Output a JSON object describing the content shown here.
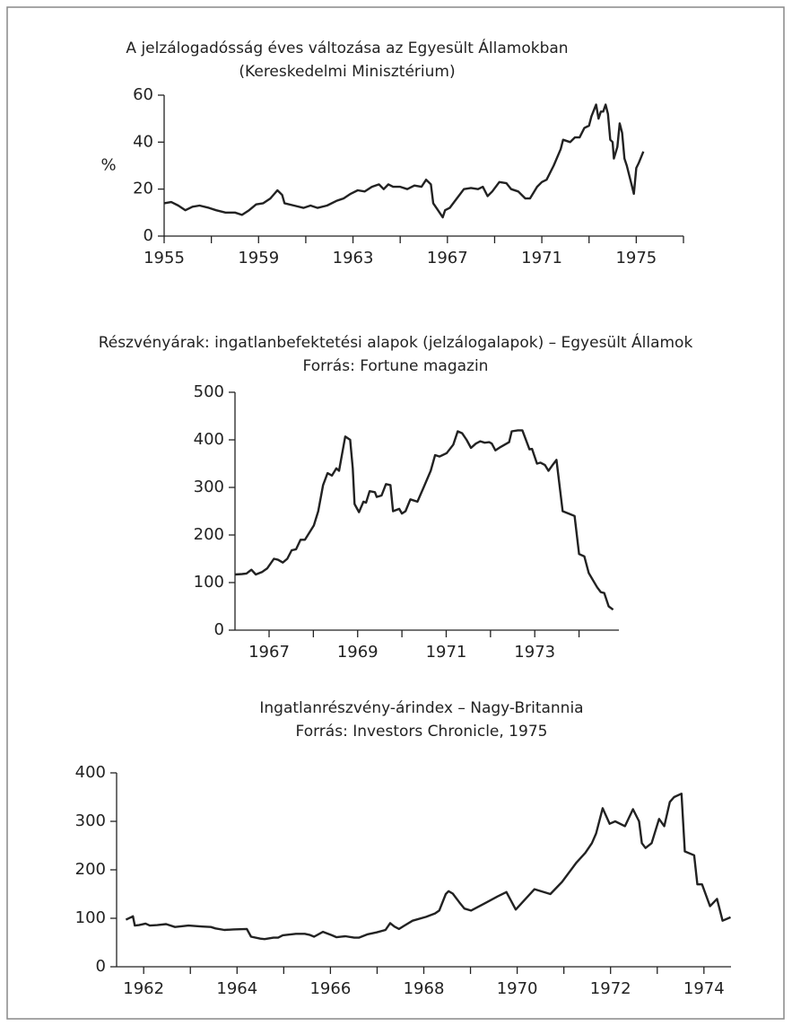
{
  "chart_data": [
    {
      "type": "line",
      "title": "A jelzálogadósság éves változása az Egyesült Államokban",
      "subtitle": "(Kereskedelmi Minisztérium)",
      "ylabel": "%",
      "color": "#222222",
      "x": [
        1955.0,
        1955.3,
        1955.6,
        1955.9,
        1956.2,
        1956.5,
        1956.9,
        1957.2,
        1957.6,
        1958.0,
        1958.3,
        1958.6,
        1958.9,
        1959.2,
        1959.5,
        1959.8,
        1960.0,
        1960.1,
        1960.5,
        1960.9,
        1961.2,
        1961.5,
        1961.9,
        1962.3,
        1962.6,
        1962.9,
        1963.2,
        1963.5,
        1963.8,
        1964.1,
        1964.3,
        1964.5,
        1964.7,
        1965.0,
        1965.3,
        1965.6,
        1965.9,
        1966.1,
        1966.3,
        1966.4,
        1966.6,
        1966.8,
        1966.9,
        1967.1,
        1967.4,
        1967.7,
        1968.0,
        1968.3,
        1968.5,
        1968.7,
        1968.9,
        1969.2,
        1969.5,
        1969.7,
        1970.0,
        1970.3,
        1970.5,
        1970.8,
        1971.0,
        1971.2,
        1971.5,
        1971.8,
        1971.9,
        1972.2,
        1972.4,
        1972.6,
        1972.8,
        1973.0,
        1973.1,
        1973.3,
        1973.4,
        1973.5,
        1973.6,
        1973.7,
        1973.8,
        1973.9,
        1974.0,
        1974.05,
        1974.2,
        1974.3,
        1974.4,
        1974.5,
        1974.6,
        1974.8,
        1974.9,
        1975.0,
        1975.1,
        1975.3
      ],
      "values": [
        14,
        14.5,
        13,
        11,
        12.5,
        13,
        12,
        11,
        10,
        10,
        9,
        11,
        13.5,
        14,
        16,
        19.5,
        17.5,
        14,
        13,
        12,
        13,
        12,
        13,
        15,
        16,
        18,
        19.5,
        19,
        21,
        22,
        20,
        22,
        21,
        21,
        20,
        21.5,
        21,
        24,
        22,
        14,
        11,
        8,
        11,
        12,
        16,
        20,
        20.5,
        20,
        21,
        17,
        19,
        23,
        22.5,
        20,
        19,
        16,
        16,
        21,
        23,
        24,
        30,
        37,
        41,
        40,
        42,
        42,
        46,
        47,
        51,
        56,
        50,
        53,
        53,
        56,
        52,
        41,
        40,
        33,
        38,
        48,
        44,
        33,
        30,
        22,
        18,
        29,
        31,
        36
      ],
      "xlim": [
        1955,
        1977
      ],
      "xticks": [
        1955,
        1959,
        1963,
        1967,
        1971,
        1975
      ],
      "xticks_minor": [
        1957,
        1961,
        1965,
        1969,
        1973,
        1977
      ],
      "ylim": [
        0,
        60
      ],
      "yticks": [
        0,
        20,
        40,
        60
      ]
    },
    {
      "type": "line",
      "title": "Részvényárak: ingatlanbefektetési alapok (jelzálogalapok) – Egyesült Államok",
      "subtitle": "Forrás: Fortune magazin",
      "color": "#222222",
      "x": [
        1966.23,
        1966.39,
        1966.49,
        1966.6,
        1966.7,
        1966.84,
        1966.96,
        1967.11,
        1967.2,
        1967.31,
        1967.41,
        1967.51,
        1967.61,
        1967.71,
        1967.81,
        1968.01,
        1968.11,
        1968.22,
        1968.32,
        1968.42,
        1968.52,
        1968.58,
        1968.72,
        1968.83,
        1968.89,
        1968.93,
        1969.03,
        1969.13,
        1969.19,
        1969.27,
        1969.39,
        1969.43,
        1969.54,
        1969.64,
        1969.74,
        1969.8,
        1969.94,
        1970.0,
        1970.08,
        1970.19,
        1970.35,
        1970.49,
        1970.65,
        1970.75,
        1970.85,
        1971.01,
        1971.16,
        1971.26,
        1971.36,
        1971.46,
        1971.56,
        1971.67,
        1971.77,
        1971.87,
        1971.97,
        1972.03,
        1972.11,
        1972.23,
        1972.42,
        1972.48,
        1972.62,
        1972.72,
        1972.88,
        1972.94,
        1973.05,
        1973.13,
        1973.23,
        1973.31,
        1973.41,
        1973.49,
        1973.63,
        1973.74,
        1973.9,
        1974.0,
        1974.12,
        1974.22,
        1974.41,
        1974.49,
        1974.57,
        1974.67,
        1974.77
      ],
      "values": [
        117,
        118,
        119,
        127,
        117,
        122,
        130,
        150,
        148,
        142,
        150,
        168,
        170,
        190,
        190,
        220,
        250,
        305,
        330,
        325,
        340,
        335,
        407,
        400,
        340,
        265,
        248,
        270,
        268,
        292,
        290,
        280,
        283,
        307,
        305,
        250,
        255,
        245,
        250,
        275,
        270,
        300,
        335,
        368,
        365,
        372,
        390,
        418,
        414,
        400,
        383,
        392,
        397,
        394,
        395,
        392,
        378,
        385,
        395,
        418,
        420,
        420,
        380,
        381,
        350,
        352,
        347,
        335,
        348,
        358,
        250,
        246,
        240,
        160,
        155,
        120,
        90,
        80,
        78,
        50,
        43
      ],
      "xlim": [
        1966.23,
        1974.9
      ],
      "xticks": [
        1967,
        1969,
        1971,
        1973
      ],
      "xticks_minor": [
        1968,
        1970,
        1972,
        1974
      ],
      "ylim": [
        0,
        500
      ],
      "yticks": [
        0,
        100,
        200,
        300,
        400,
        500
      ]
    },
    {
      "type": "line",
      "title": "Ingatlanrészvény-árindex – Nagy-Britannia",
      "subtitle": "Forrás: Investors Chronicle, 1975",
      "color": "#222222",
      "x": [
        1961.62,
        1961.77,
        1961.81,
        1961.9,
        1962.04,
        1962.13,
        1962.29,
        1962.48,
        1962.67,
        1962.96,
        1963.25,
        1963.44,
        1963.54,
        1963.73,
        1963.92,
        1964.21,
        1964.3,
        1964.5,
        1964.59,
        1964.78,
        1964.88,
        1964.98,
        1965.26,
        1965.45,
        1965.55,
        1965.65,
        1965.84,
        1966.03,
        1966.13,
        1966.32,
        1966.51,
        1966.61,
        1966.8,
        1966.99,
        1967.18,
        1967.28,
        1967.37,
        1967.47,
        1967.57,
        1967.76,
        1968.05,
        1968.24,
        1968.33,
        1968.47,
        1968.53,
        1968.62,
        1968.76,
        1968.87,
        1969.01,
        1969.29,
        1969.58,
        1969.77,
        1969.97,
        1970.37,
        1970.71,
        1970.96,
        1971.27,
        1971.46,
        1971.6,
        1971.69,
        1971.83,
        1971.98,
        1972.1,
        1972.31,
        1972.48,
        1972.61,
        1972.67,
        1972.75,
        1972.88,
        1973.04,
        1973.15,
        1973.27,
        1973.36,
        1973.52,
        1973.59,
        1973.79,
        1973.86,
        1973.96,
        1974.13,
        1974.28,
        1974.4,
        1974.57
      ],
      "values": [
        97,
        104,
        85,
        86,
        89,
        85,
        86,
        88,
        82,
        85,
        83,
        82,
        79,
        76,
        77,
        78,
        62,
        58,
        57,
        60,
        60,
        65,
        68,
        68,
        66,
        62,
        72,
        65,
        61,
        63,
        60,
        60,
        67,
        71,
        76,
        90,
        83,
        78,
        84,
        95,
        103,
        110,
        116,
        150,
        156,
        151,
        133,
        120,
        116,
        130,
        145,
        154,
        118,
        160,
        150,
        175,
        215,
        235,
        255,
        275,
        327,
        295,
        300,
        290,
        325,
        300,
        255,
        245,
        255,
        305,
        290,
        340,
        350,
        357,
        238,
        230,
        170,
        170,
        125,
        140,
        95,
        102
      ],
      "xlim": [
        1961.42,
        1974.58
      ],
      "xticks": [
        1962,
        1964,
        1966,
        1968,
        1970,
        1972,
        1974
      ],
      "xticks_minor": [
        1963,
        1965,
        1967,
        1969,
        1971,
        1973
      ],
      "ylim": [
        0,
        400
      ],
      "yticks": [
        0,
        100,
        200,
        300,
        400
      ]
    }
  ]
}
